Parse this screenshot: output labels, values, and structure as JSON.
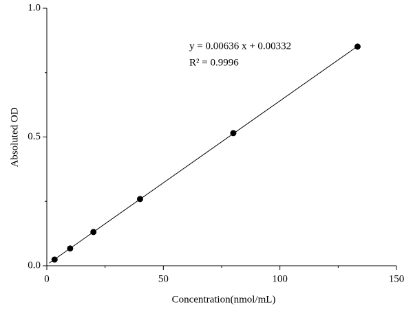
{
  "chart_data": {
    "type": "scatter",
    "x_label": "Concentration(nmol/mL)",
    "y_label": "Absoluted OD",
    "annotations": [
      "y = 0.00636 x + 0.00332",
      "R² = 0.9996"
    ],
    "series": [
      {
        "color": "#000000",
        "x": [
          3.33,
          10,
          20,
          40,
          80,
          133.3
        ],
        "values": [
          0.024,
          0.067,
          0.131,
          0.259,
          0.515,
          0.851
        ]
      }
    ],
    "fit_line": true,
    "xlim": [
      0,
      150
    ],
    "xticks": [
      0,
      50,
      100,
      150
    ],
    "xminorticks": [
      25,
      75,
      125
    ],
    "ylim": [
      0,
      1
    ],
    "yticks": [
      {
        "value": 0,
        "label": "0.0"
      },
      {
        "value": 0.5,
        "label": "0.5"
      },
      {
        "value": 1,
        "label": "1.0"
      }
    ],
    "yminorticks": [
      0.25,
      0.75
    ]
  }
}
